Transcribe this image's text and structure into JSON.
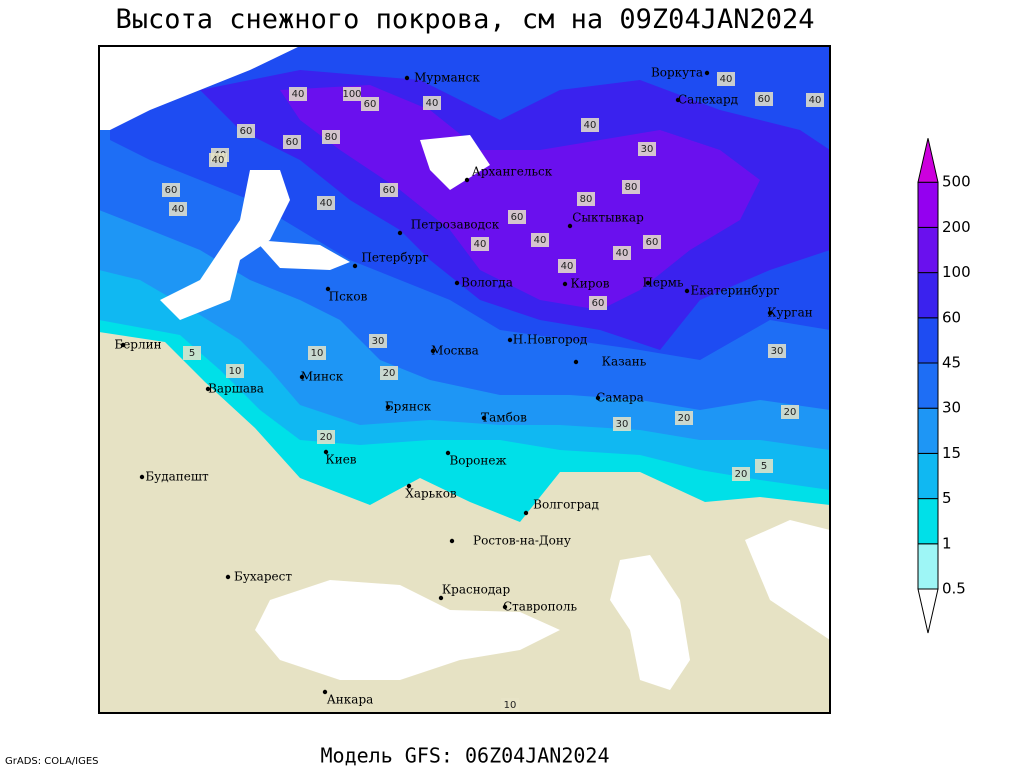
{
  "header": {
    "title": "Высота снежного покрова, см на 09Z04JAN2024"
  },
  "footer": {
    "model": "Модель GFS: 06Z04JAN2024",
    "credit": "GrADS: COLA/IGES"
  },
  "cities": [
    "Мурманск",
    "Архангельск",
    "Петрозаводск",
    "Петербург",
    "Псков",
    "Вологда",
    "Сыктывкар",
    "Киров",
    "Пермь",
    "Екатеринбург",
    "Курган",
    "Воркута",
    "Салехард",
    "Берлин",
    "Варшава",
    "Минск",
    "Москва",
    "Н.Новгород",
    "Казань",
    "Брянск",
    "Тамбов",
    "Самара",
    "Киев",
    "Воронеж",
    "Харьков",
    "Волгоград",
    "Будапешт",
    "Бухарест",
    "Ростов-на-Дону",
    "Краснодар",
    "Ставрополь",
    "Анкара"
  ],
  "contour_labels": [
    40,
    100,
    60,
    40,
    60,
    80,
    40,
    60,
    40,
    60,
    40,
    40,
    60,
    80,
    80,
    60,
    40,
    60,
    40,
    40,
    60,
    40,
    40,
    30,
    20,
    10,
    5,
    10,
    30,
    20,
    20,
    30,
    30,
    20,
    20,
    5,
    10,
    40,
    60,
    40
  ],
  "legend": {
    "levels": [
      0.5,
      1,
      5,
      15,
      30,
      45,
      60,
      100,
      200,
      500
    ],
    "colors": [
      "#ffffff",
      "#9ef6f6",
      "#00e0e8",
      "#10b8f2",
      "#1e96f5",
      "#1e6ef5",
      "#1e4cf2",
      "#3a22ee",
      "#6a10ee",
      "#9400f0",
      "#cc00dd"
    ]
  }
}
